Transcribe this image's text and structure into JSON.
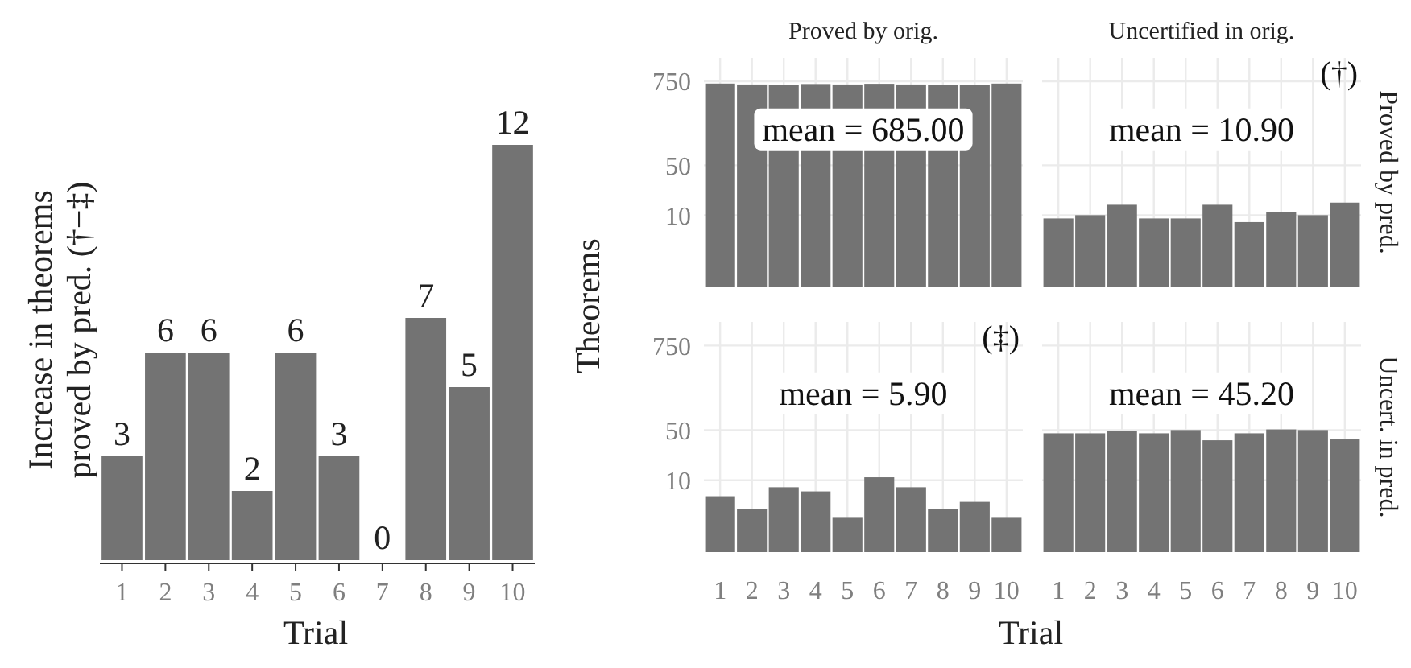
{
  "chart_data": [
    {
      "type": "bar",
      "xlabel": "Trial",
      "ylabel": "Increase in theorems\nproved by pred. (†−‡)",
      "categories": [
        "1",
        "2",
        "3",
        "4",
        "5",
        "6",
        "7",
        "8",
        "9",
        "10"
      ],
      "values": [
        3,
        6,
        6,
        2,
        6,
        3,
        0,
        7,
        5,
        12
      ],
      "color": "#737373",
      "data_labels": true,
      "tick_labels": "x"
    },
    {
      "type": "bar",
      "title": "Proved by orig.",
      "ylabel": "Theorems",
      "categories": [
        "1",
        "2",
        "3",
        "4",
        "5",
        "6",
        "7",
        "8",
        "9",
        "10"
      ],
      "values": [
        700,
        680,
        675,
        690,
        680,
        695,
        680,
        675,
        675,
        700
      ],
      "color": "#737373",
      "log": "y",
      "ylim": [
        1,
        1600
      ],
      "yticks": [
        10,
        50,
        750
      ],
      "grid": true,
      "tick_labels": "y",
      "annotations": [
        "mean = 685.00"
      ]
    },
    {
      "type": "bar",
      "title": "Uncertified in orig.",
      "y2label": "Proved by pred.",
      "categories": [
        "1",
        "2",
        "3",
        "4",
        "5",
        "6",
        "7",
        "8",
        "9",
        "10"
      ],
      "values": [
        9,
        10,
        14,
        9,
        9,
        14,
        8,
        11,
        10,
        15
      ],
      "color": "#737373",
      "log": "y",
      "ylim": [
        1,
        1600
      ],
      "yticks": [
        10,
        50,
        750
      ],
      "grid": true,
      "tick_labels": false,
      "annotations": [
        "mean = 10.90",
        "(†)"
      ]
    },
    {
      "type": "bar",
      "xlabel": "Trial",
      "categories": [
        "1",
        "2",
        "3",
        "4",
        "5",
        "6",
        "7",
        "8",
        "9",
        "10"
      ],
      "values": [
        6,
        4,
        8,
        7,
        3,
        11,
        8,
        4,
        5,
        3
      ],
      "color": "#737373",
      "log": "y",
      "ylim": [
        1,
        1600
      ],
      "yticks": [
        10,
        50,
        750
      ],
      "grid": true,
      "annotations": [
        "mean = 5.90",
        "(‡)"
      ]
    },
    {
      "type": "bar",
      "y2label": "Uncert. in pred.",
      "categories": [
        "1",
        "2",
        "3",
        "4",
        "5",
        "6",
        "7",
        "8",
        "9",
        "10"
      ],
      "values": [
        45,
        45,
        48,
        45,
        50,
        36,
        45,
        51,
        50,
        37
      ],
      "color": "#737373",
      "log": "y",
      "ylim": [
        1,
        1600
      ],
      "yticks": [
        10,
        50,
        750
      ],
      "grid": true,
      "tick_labels": "x",
      "annotations": [
        "mean = 45.20"
      ]
    }
  ]
}
